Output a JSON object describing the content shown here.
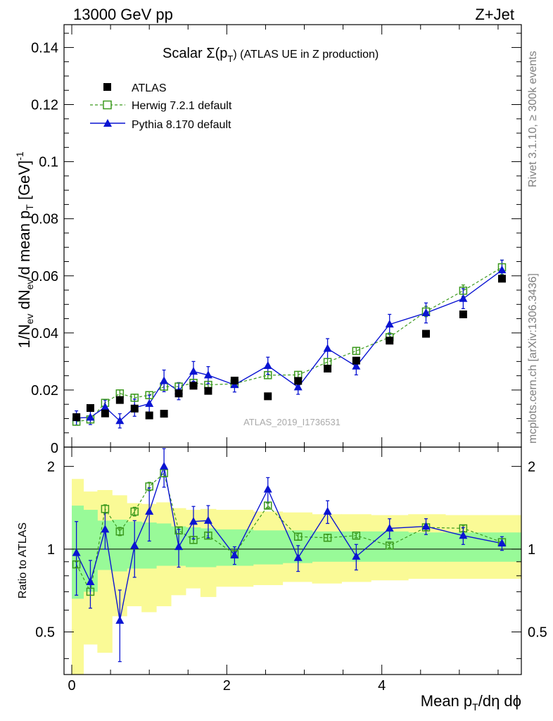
{
  "header": {
    "left": "13000 GeV pp",
    "right": "Z+Jet"
  },
  "side_labels": {
    "right_top": "Rivet 3.1.10, ≥ 300k events",
    "right_bottom": "mcplots.cern.ch [arXiv:1306.3436]"
  },
  "watermark": "ATLAS_2019_I1736531",
  "colors": {
    "atlas": "#000000",
    "herwig": "#3c9a1e",
    "pythia": "#0a14d2",
    "band_inner": "#98fa98",
    "band_outer": "#fafa96"
  },
  "chart_data": [
    {
      "type": "scatter",
      "panel": "main",
      "title": "Scalar Σ(p_T) (ATLAS UE in Z production)",
      "title_parts": {
        "main": "Scalar Σ(p",
        "sub": "T",
        "tail": ") (ATLAS UE in Z production)"
      },
      "ylabel": "1/N_ev dN_ev/d mean p_T [GeV]^-1",
      "ylabel_parts": [
        "1/N",
        "ev",
        " dN",
        "ev",
        "/d mean p",
        "T",
        " [GeV]",
        "-1"
      ],
      "xlim": [
        -0.1,
        5.8
      ],
      "ylim": [
        0,
        0.148
      ],
      "y_ticks": [
        0.02,
        0.04,
        0.06,
        0.08,
        0.1,
        0.12,
        0.14
      ],
      "y_tick_labels": [
        "0.02",
        "0.04",
        "0.06",
        "0.08",
        "0.1",
        "0.12",
        "0.14"
      ],
      "y_zero_label": "0",
      "legend_position": "top-left",
      "series": [
        {
          "name": "ATLAS",
          "marker": "filled-square",
          "x": [
            0.06,
            0.24,
            0.43,
            0.62,
            0.81,
            1.0,
            1.19,
            1.38,
            1.57,
            1.76,
            2.1,
            2.53,
            2.92,
            3.3,
            3.67,
            4.1,
            4.57,
            5.05,
            5.55
          ],
          "y": [
            0.0105,
            0.0137,
            0.0118,
            0.0165,
            0.0135,
            0.0111,
            0.0117,
            0.0188,
            0.0215,
            0.0197,
            0.0233,
            0.0178,
            0.0232,
            0.0275,
            0.0303,
            0.0373,
            0.0397,
            0.0465,
            0.059
          ]
        },
        {
          "name": "Herwig 7.2.1 default",
          "marker": "open-square",
          "line": "dashed",
          "x": [
            0.06,
            0.24,
            0.43,
            0.62,
            0.81,
            1.0,
            1.19,
            1.38,
            1.57,
            1.76,
            2.1,
            2.53,
            2.92,
            3.3,
            3.67,
            4.1,
            4.57,
            5.05,
            5.55
          ],
          "y": [
            0.0089,
            0.0097,
            0.0155,
            0.0188,
            0.0173,
            0.0182,
            0.0212,
            0.0212,
            0.0225,
            0.0218,
            0.0222,
            0.0252,
            0.0253,
            0.0298,
            0.0337,
            0.0385,
            0.0475,
            0.0548,
            0.063
          ],
          "err": [
            0.0012,
            0.0012,
            0.0012,
            0.0012,
            0.0012,
            0.0012,
            0.0012,
            0.0012,
            0.0012,
            0.0012,
            0.0012,
            0.0012,
            0.0012,
            0.0012,
            0.0012,
            0.0015,
            0.0018,
            0.002,
            0.0025
          ]
        },
        {
          "name": "Pythia 8.170 default",
          "marker": "filled-triangle",
          "line": "solid",
          "x": [
            0.06,
            0.24,
            0.43,
            0.62,
            0.81,
            1.0,
            1.19,
            1.38,
            1.57,
            1.76,
            2.1,
            2.53,
            2.92,
            3.3,
            3.67,
            4.1,
            4.57,
            5.05,
            5.55
          ],
          "y": [
            0.0102,
            0.0104,
            0.014,
            0.0092,
            0.0138,
            0.0152,
            0.0232,
            0.0196,
            0.0265,
            0.0252,
            0.0218,
            0.0285,
            0.021,
            0.0345,
            0.0283,
            0.043,
            0.047,
            0.052,
            0.062
          ],
          "err": [
            0.0025,
            0.0025,
            0.0025,
            0.0025,
            0.003,
            0.003,
            0.0038,
            0.003,
            0.0035,
            0.003,
            0.0025,
            0.003,
            0.0025,
            0.0035,
            0.003,
            0.0035,
            0.0035,
            0.0035,
            0.0035
          ]
        }
      ]
    },
    {
      "type": "scatter",
      "panel": "ratio",
      "ylabel": "Ratio to ATLAS",
      "xlabel": "Mean p_T/dη dϕ",
      "xlabel_parts": {
        "main": "Mean p",
        "sub": "T",
        "tail": "/dη dϕ"
      },
      "xlim": [
        -0.1,
        5.8
      ],
      "ylim": [
        0.35,
        2.35
      ],
      "scale": "log",
      "x_ticks": [
        0,
        2,
        4
      ],
      "x_tick_labels": [
        "0",
        "2",
        "4"
      ],
      "y_ticks": [
        0.5,
        1,
        2
      ],
      "y_tick_labels": [
        "0.5",
        "1",
        "2"
      ],
      "bin_edges": [
        0.0,
        0.15,
        0.33,
        0.52,
        0.71,
        0.9,
        1.09,
        1.28,
        1.47,
        1.66,
        1.86,
        2.34,
        2.72,
        3.1,
        3.48,
        3.86,
        4.34,
        4.82,
        5.29,
        5.8
      ],
      "band_inner_lo": [
        0.66,
        0.7,
        0.84,
        0.83,
        0.85,
        0.85,
        0.87,
        0.87,
        0.86,
        0.86,
        0.87,
        0.88,
        0.89,
        0.9,
        0.9,
        0.9,
        0.9,
        0.9,
        0.9
      ],
      "band_inner_hi": [
        1.44,
        1.39,
        1.27,
        1.28,
        1.26,
        1.25,
        1.24,
        1.21,
        1.2,
        1.19,
        1.18,
        1.17,
        1.17,
        1.16,
        1.16,
        1.16,
        1.15,
        1.15,
        1.15
      ],
      "band_outer_lo": [
        0.33,
        0.45,
        0.42,
        0.57,
        0.62,
        0.59,
        0.62,
        0.68,
        0.72,
        0.67,
        0.73,
        0.74,
        0.76,
        0.75,
        0.76,
        0.77,
        0.78,
        0.78,
        0.78
      ],
      "band_outer_hi": [
        1.8,
        1.62,
        1.64,
        1.57,
        1.47,
        1.46,
        1.48,
        1.41,
        1.39,
        1.4,
        1.39,
        1.37,
        1.36,
        1.34,
        1.34,
        1.33,
        1.34,
        1.33,
        1.33
      ],
      "series": [
        {
          "name": "Herwig 7.2.1 default",
          "x": [
            0.06,
            0.24,
            0.43,
            0.62,
            0.81,
            1.0,
            1.19,
            1.38,
            1.57,
            1.76,
            2.1,
            2.53,
            2.92,
            3.3,
            3.67,
            4.1,
            4.57,
            5.05,
            5.55
          ],
          "y": [
            0.88,
            0.7,
            1.4,
            1.16,
            1.37,
            1.69,
            1.89,
            1.17,
            1.08,
            1.12,
            0.96,
            1.44,
            1.11,
            1.1,
            1.12,
            1.03,
            1.2,
            1.19,
            1.06
          ],
          "err": [
            0.02,
            0.02,
            0.05,
            0.04,
            0.05,
            0.06,
            0.06,
            0.03,
            0.03,
            0.03,
            0.02,
            0.03,
            0.03,
            0.03,
            0.02,
            0.02,
            0.03,
            0.03,
            0.03
          ]
        },
        {
          "name": "Pythia 8.170 default",
          "x": [
            0.06,
            0.24,
            0.43,
            0.62,
            0.81,
            1.0,
            1.19,
            1.38,
            1.57,
            1.76,
            2.1,
            2.53,
            2.92,
            3.3,
            3.67,
            4.1,
            4.57,
            5.05,
            5.55
          ],
          "y": [
            0.97,
            0.76,
            1.18,
            0.55,
            1.03,
            1.37,
            2.0,
            1.02,
            1.26,
            1.27,
            0.95,
            1.65,
            0.93,
            1.37,
            0.94,
            1.19,
            1.21,
            1.12,
            1.05
          ],
          "err": [
            0.29,
            0.15,
            0.18,
            0.16,
            0.24,
            0.3,
            0.32,
            0.16,
            0.17,
            0.17,
            0.07,
            0.17,
            0.1,
            0.13,
            0.1,
            0.1,
            0.08,
            0.08,
            0.06
          ]
        }
      ]
    }
  ]
}
